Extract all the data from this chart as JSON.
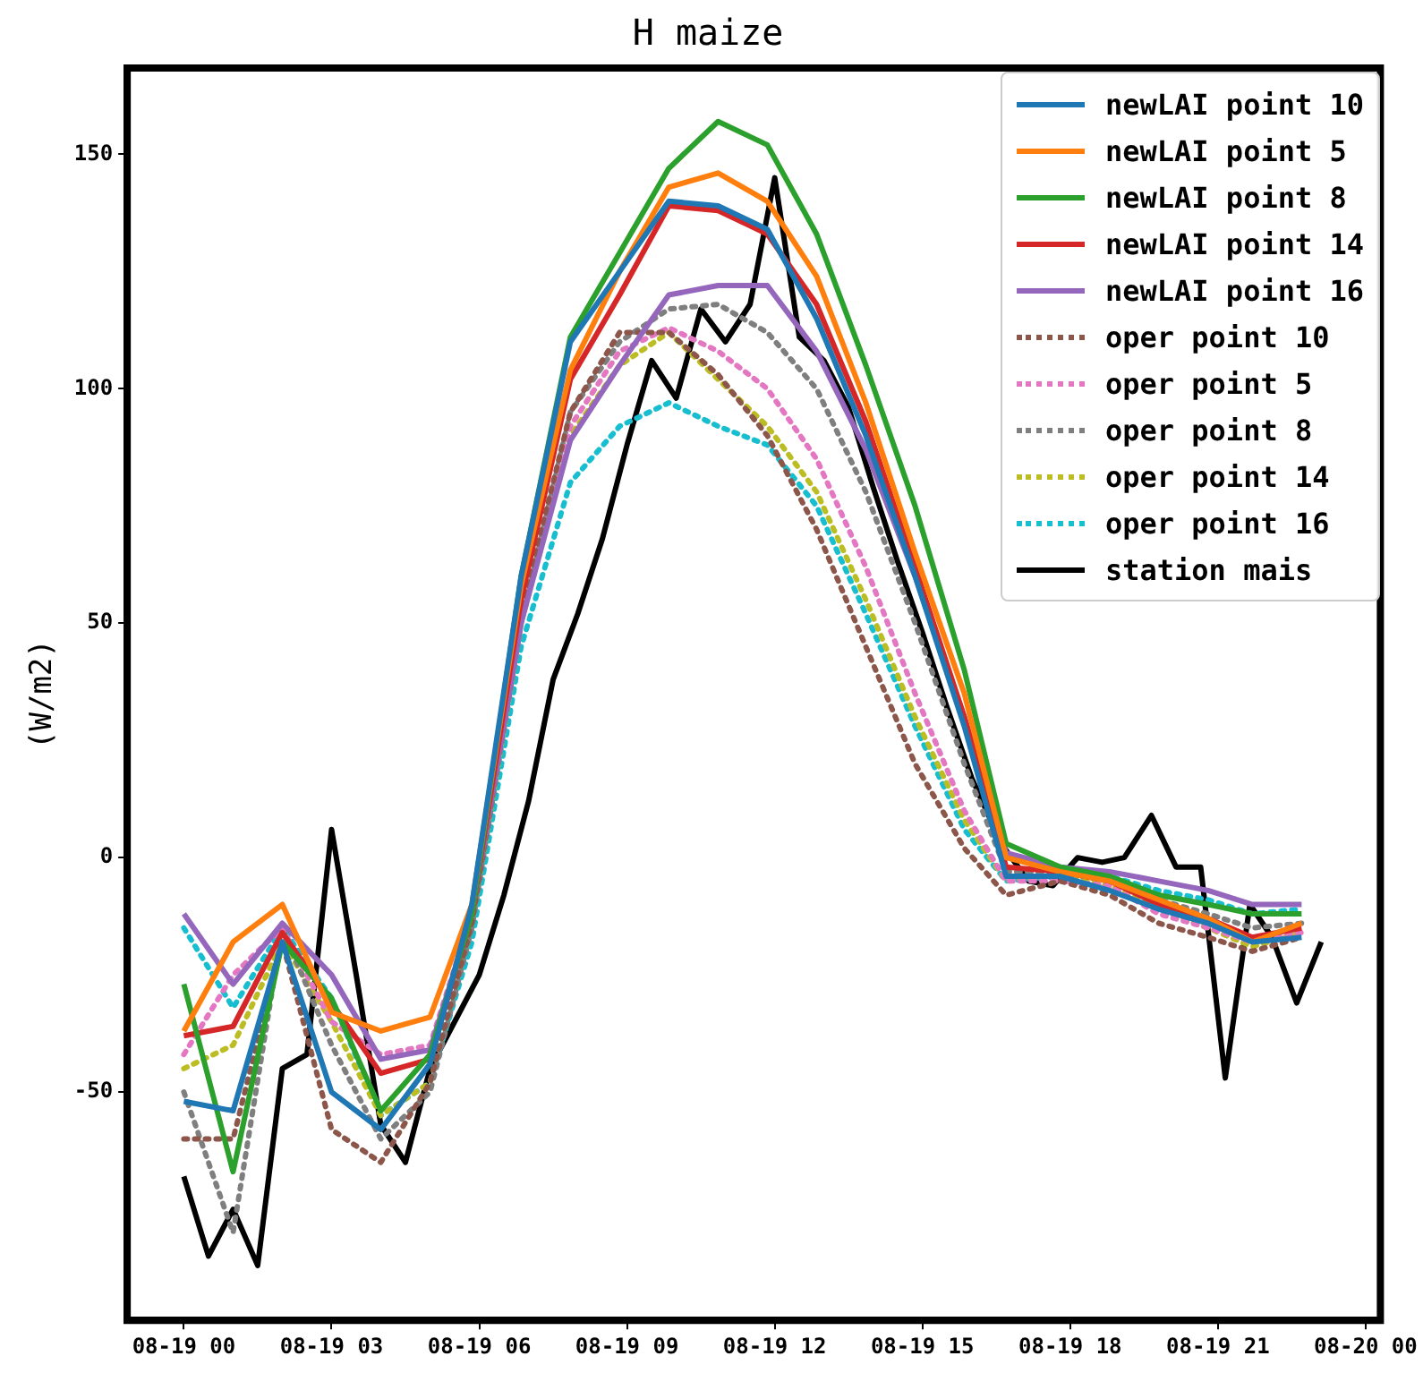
{
  "chart_data": {
    "type": "line",
    "title": "H maize",
    "ylabel": "(W/m2)",
    "x": [
      "--08-19T00:00",
      "--08-19T01:00",
      "--08-19T02:00",
      "--08-19T03:00",
      "--08-19T04:00",
      "--08-19T05:00",
      "--08-19T05:51",
      "--08-19T06:51",
      "--08-19T07:51",
      "--08-19T08:51",
      "--08-19T09:51",
      "--08-19T10:51",
      "--08-19T11:51",
      "--08-19T12:51",
      "--08-19T13:51",
      "--08-19T14:51",
      "--08-19T15:51",
      "--08-19T16:42",
      "--08-19T17:48",
      "--08-19T18:48",
      "--08-19T19:48",
      "--08-19T20:48",
      "--08-19T21:42",
      "--08-19T22:42"
    ],
    "xlim": [
      "--08-18T22:51",
      "--08-20T00:18"
    ],
    "xticks": [
      {
        "value": "--08-19T00:00",
        "label": "08-19 00"
      },
      {
        "value": "--08-19T03:00",
        "label": "08-19 03"
      },
      {
        "value": "--08-19T06:00",
        "label": "08-19 06"
      },
      {
        "value": "--08-19T09:00",
        "label": "08-19 09"
      },
      {
        "value": "--08-19T12:00",
        "label": "08-19 12"
      },
      {
        "value": "--08-19T15:00",
        "label": "08-19 15"
      },
      {
        "value": "--08-19T18:00",
        "label": "08-19 18"
      },
      {
        "value": "--08-19T21:00",
        "label": "08-19 21"
      },
      {
        "value": "--08-20T00:00",
        "label": "08-20 00"
      }
    ],
    "ylim": [
      -98.7,
      168.4
    ],
    "yticks": [
      -50,
      0,
      50,
      100,
      150
    ],
    "grid": false,
    "legend": "top right",
    "marker": "none",
    "series": [
      {
        "name": "newLAI point 10",
        "color": "#1f77b4",
        "line_style": "solid",
        "values": [
          -52,
          -54,
          -18,
          -50,
          -58,
          -44,
          -10,
          60,
          110,
          125,
          140,
          139,
          134,
          115,
          90,
          60,
          28,
          -4,
          -4,
          -7,
          -11,
          -14,
          -18,
          -17
        ]
      },
      {
        "name": "newLAI point 5",
        "color": "#ff7f0e",
        "line_style": "solid",
        "values": [
          -37,
          -18,
          -10,
          -33,
          -37,
          -34,
          -10,
          58,
          104,
          125,
          143,
          146,
          140,
          124,
          97,
          65,
          35,
          0,
          -3,
          -5,
          -9,
          -13,
          -18,
          -14
        ]
      },
      {
        "name": "newLAI point 8",
        "color": "#2ca02c",
        "line_style": "solid",
        "values": [
          -27,
          -67,
          -18,
          -30,
          -54,
          -42,
          -12,
          60,
          111,
          129,
          147,
          157,
          152,
          133,
          105,
          75,
          40,
          3,
          -2,
          -4,
          -8,
          -10,
          -12,
          -12
        ]
      },
      {
        "name": "newLAI point 14",
        "color": "#d62728",
        "line_style": "solid",
        "values": [
          -38,
          -36,
          -16,
          -31,
          -46,
          -43,
          -12,
          55,
          102,
          120,
          139,
          138,
          133,
          118,
          93,
          62,
          30,
          -2,
          -3,
          -5,
          -10,
          -13,
          -17,
          -15
        ]
      },
      {
        "name": "newLAI point 16",
        "color": "#9467bd",
        "line_style": "solid",
        "values": [
          -12,
          -27,
          -14,
          -25,
          -43,
          -41,
          -12,
          50,
          89,
          105,
          120,
          122,
          122,
          108,
          87,
          60,
          30,
          1,
          -2,
          -3,
          -5,
          -7,
          -10,
          -10
        ]
      },
      {
        "name": "oper point 10",
        "color": "#8c564b",
        "line_style": "dotted",
        "values": [
          -60,
          -60,
          -18,
          -58,
          -65,
          -48,
          -14,
          52,
          95,
          112,
          112,
          103,
          90,
          70,
          45,
          20,
          2,
          -8,
          -5,
          -8,
          -14,
          -17,
          -20,
          -17
        ]
      },
      {
        "name": "oper point 5",
        "color": "#e377c2",
        "line_style": "dotted",
        "values": [
          -42,
          -25,
          -15,
          -35,
          -42,
          -40,
          -12,
          52,
          92,
          108,
          113,
          108,
          100,
          85,
          62,
          35,
          10,
          -5,
          -5,
          -6,
          -12,
          -15,
          -18,
          -16
        ]
      },
      {
        "name": "oper point 8",
        "color": "#7f7f7f",
        "line_style": "dotted",
        "values": [
          -50,
          -80,
          -15,
          -40,
          -60,
          -50,
          -15,
          50,
          95,
          110,
          117,
          118,
          112,
          100,
          78,
          50,
          20,
          -3,
          -3,
          -5,
          -9,
          -12,
          -15,
          -14
        ]
      },
      {
        "name": "oper point 14",
        "color": "#bcbd22",
        "line_style": "dotted",
        "values": [
          -45,
          -40,
          -18,
          -35,
          -55,
          -48,
          -14,
          50,
          90,
          105,
          112,
          102,
          92,
          78,
          55,
          30,
          8,
          -5,
          -4,
          -6,
          -11,
          -15,
          -19,
          -16
        ]
      },
      {
        "name": "oper point 16",
        "color": "#17becf",
        "line_style": "dotted",
        "values": [
          -15,
          -32,
          -15,
          -30,
          -55,
          -48,
          -18,
          45,
          80,
          92,
          97,
          92,
          88,
          75,
          52,
          28,
          6,
          -5,
          -4,
          -4,
          -7,
          -9,
          -12,
          -11
        ]
      },
      {
        "name": "station mais",
        "color": "#000000",
        "line_style": "solid",
        "x": [
          "--08-19T00:00",
          "--08-19T00:30",
          "--08-19T01:00",
          "--08-19T01:30",
          "--08-19T02:00",
          "--08-19T02:30",
          "--08-19T03:00",
          "--08-19T03:30",
          "--08-19T04:00",
          "--08-19T04:30",
          "--08-19T05:00",
          "--08-19T05:30",
          "--08-19T06:00",
          "--08-19T06:30",
          "--08-19T07:00",
          "--08-19T07:30",
          "--08-19T08:00",
          "--08-19T08:30",
          "--08-19T09:00",
          "--08-19T09:30",
          "--08-19T10:00",
          "--08-19T10:30",
          "--08-19T11:00",
          "--08-19T11:30",
          "--08-19T12:00",
          "--08-19T12:30",
          "--08-19T13:00",
          "--08-19T13:30",
          "--08-19T14:00",
          "--08-19T14:30",
          "--08-19T15:00",
          "--08-19T15:30",
          "--08-19T16:00",
          "--08-19T16:36",
          "--08-19T17:09",
          "--08-19T17:39",
          "--08-19T18:09",
          "--08-19T18:39",
          "--08-19T19:06",
          "--08-19T19:39",
          "--08-19T20:09",
          "--08-19T20:39",
          "--08-19T21:09",
          "--08-19T21:39",
          "--08-19T22:06",
          "--08-19T22:36",
          "--08-19T23:06"
        ],
        "values": [
          -68,
          -85,
          -75,
          -87,
          -45,
          -42,
          6,
          -25,
          -57,
          -65,
          -45,
          -35,
          -25,
          -8,
          12,
          38,
          52,
          68,
          88,
          106,
          98,
          117,
          110,
          118,
          145,
          111,
          106,
          96,
          79,
          63,
          48,
          32,
          17,
          3,
          -5,
          -6,
          0,
          -1,
          0,
          9,
          -2,
          -2,
          -47,
          -10,
          -17,
          -31,
          -18
        ]
      }
    ]
  }
}
